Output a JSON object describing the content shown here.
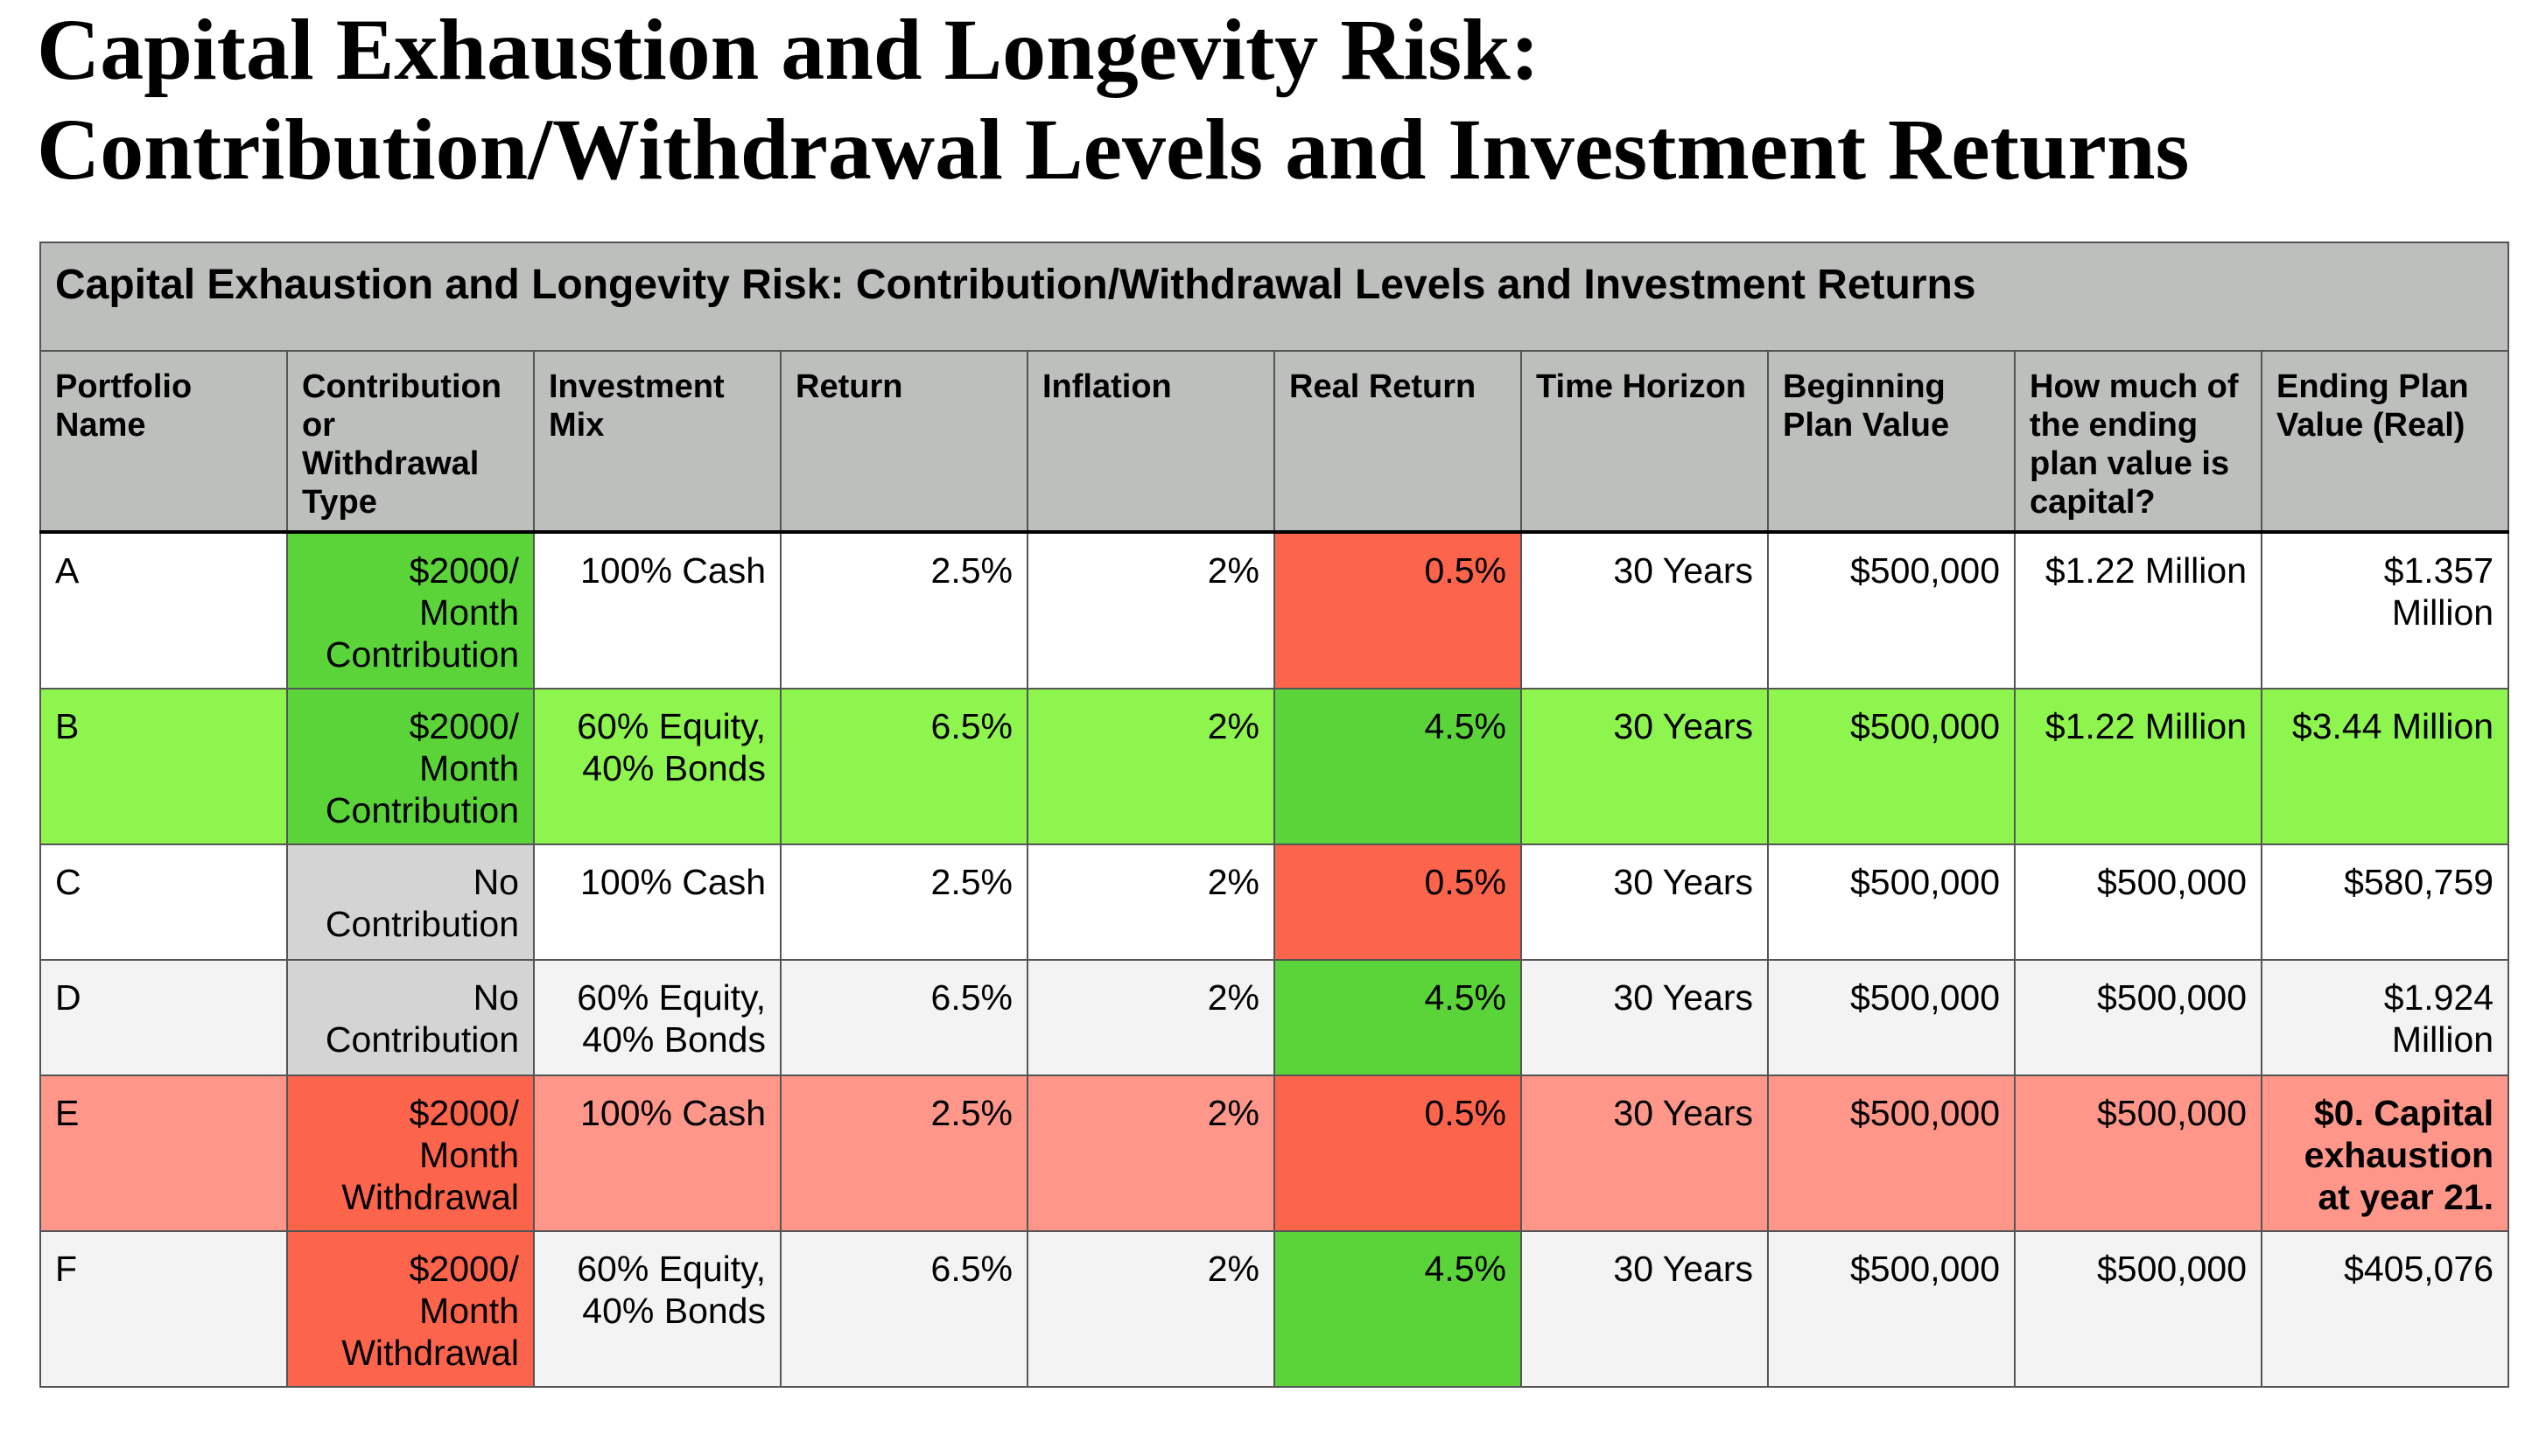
{
  "page": {
    "title_line1": "Capital Exhaustion and Longevity Risk:",
    "title_line2": "Contribution/Withdrawal Levels and Investment Returns"
  },
  "table": {
    "caption": "Capital Exhaustion and Longevity Risk: Contribution/Withdrawal Levels and Investment Returns",
    "headers": [
      "Portfolio Name",
      "Contribution or Withdrawal Type",
      "Investment Mix",
      "Return",
      "Inflation",
      "Real Return",
      "Time Horizon",
      "Beginning Plan Value",
      "How much of the ending plan value is capital?",
      "Ending Plan Value (Real)"
    ],
    "rows": [
      [
        "A",
        "$2000/ Month Contribution",
        "100% Cash",
        "2.5%",
        "2%",
        "0.5%",
        "30 Years",
        "$500,000",
        "$1.22 Million",
        "$1.357 Million"
      ],
      [
        "B",
        "$2000/ Month Contribution",
        "60% Equity, 40% Bonds",
        "6.5%",
        "2%",
        "4.5%",
        "30 Years",
        "$500,000",
        "$1.22 Million",
        "$3.44 Million"
      ],
      [
        "C",
        "No Contribution",
        "100% Cash",
        "2.5%",
        "2%",
        "0.5%",
        "30 Years",
        "$500,000",
        "$500,000",
        "$580,759"
      ],
      [
        "D",
        "No Contribution",
        "60% Equity, 40% Bonds",
        "6.5%",
        "2%",
        "4.5%",
        "30 Years",
        "$500,000",
        "$500,000",
        "$1.924 Million"
      ],
      [
        "E",
        "$2000/ Month Withdrawal",
        "100% Cash",
        "2.5%",
        "2%",
        "0.5%",
        "30 Years",
        "$500,000",
        "$500,000",
        "$0. Capital exhaustion at year 21."
      ],
      [
        "F",
        "$2000/ Month Withdrawal",
        "60% Equity, 40% Bonds",
        "6.5%",
        "2%",
        "4.5%",
        "30 Years",
        "$500,000",
        "$500,000",
        "$405,076"
      ]
    ]
  },
  "colors": {
    "header_grey": "#bcbfbc",
    "highlight_green": "#5bd43a",
    "row_lime": "#8ef54f",
    "highlight_red": "#fd644c",
    "row_pink": "#fe968a",
    "neutral_grey": "#d4d4d4",
    "stripe_grey": "#f3f3f3"
  }
}
